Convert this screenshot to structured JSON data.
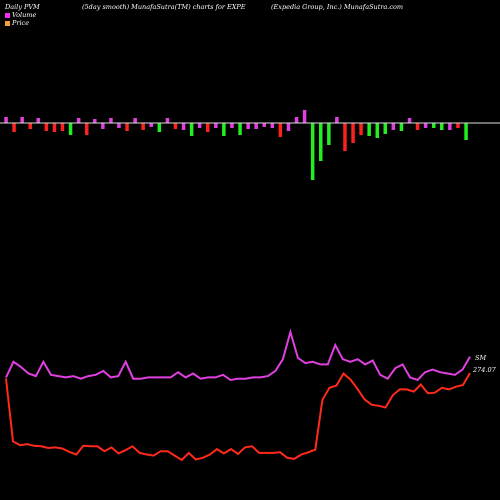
{
  "header": {
    "left": "Daily PVM",
    "middle": "(5day smooth) MunafaSutra(TM) charts for EXPE",
    "right": "(Expedia Group, Inc.) MunafaSutra.com"
  },
  "legend": [
    {
      "label": "Volume",
      "color": "#f02ff0"
    },
    {
      "label": "Price",
      "color": "#f5a03a"
    }
  ],
  "colors": {
    "background": "#000000",
    "baseline": "#dddddd",
    "bar_neutral": "#e040e0",
    "bar_down": "#ff2020",
    "bar_up": "#22ee22",
    "volume_line": "#e040e0",
    "price_line": "#ff2a1a"
  },
  "chart_data": [
    {
      "type": "bar",
      "description_series": "volume bars relative to baseline",
      "values": [
        {
          "v": 6,
          "c": "neutral"
        },
        {
          "v": -9,
          "c": "down"
        },
        {
          "v": 6,
          "c": "neutral"
        },
        {
          "v": -6,
          "c": "down"
        },
        {
          "v": 5,
          "c": "neutral"
        },
        {
          "v": -8,
          "c": "down"
        },
        {
          "v": -9,
          "c": "down"
        },
        {
          "v": -8,
          "c": "down"
        },
        {
          "v": -12,
          "c": "up"
        },
        {
          "v": 5,
          "c": "neutral"
        },
        {
          "v": -12,
          "c": "down"
        },
        {
          "v": 4,
          "c": "neutral"
        },
        {
          "v": -6,
          "c": "neutral"
        },
        {
          "v": 5,
          "c": "neutral"
        },
        {
          "v": -5,
          "c": "neutral"
        },
        {
          "v": -8,
          "c": "down"
        },
        {
          "v": 5,
          "c": "neutral"
        },
        {
          "v": -7,
          "c": "down"
        },
        {
          "v": -4,
          "c": "neutral"
        },
        {
          "v": -9,
          "c": "up"
        },
        {
          "v": 5,
          "c": "neutral"
        },
        {
          "v": -6,
          "c": "down"
        },
        {
          "v": -7,
          "c": "neutral"
        },
        {
          "v": -13,
          "c": "up"
        },
        {
          "v": -5,
          "c": "neutral"
        },
        {
          "v": -9,
          "c": "down"
        },
        {
          "v": -5,
          "c": "neutral"
        },
        {
          "v": -13,
          "c": "up"
        },
        {
          "v": -5,
          "c": "neutral"
        },
        {
          "v": -12,
          "c": "up"
        },
        {
          "v": -6,
          "c": "neutral"
        },
        {
          "v": -6,
          "c": "neutral"
        },
        {
          "v": -4,
          "c": "neutral"
        },
        {
          "v": -5,
          "c": "neutral"
        },
        {
          "v": -14,
          "c": "down"
        },
        {
          "v": -8,
          "c": "neutral"
        },
        {
          "v": 6,
          "c": "neutral"
        },
        {
          "v": 13,
          "c": "neutral"
        },
        {
          "v": -57,
          "c": "up"
        },
        {
          "v": -38,
          "c": "up"
        },
        {
          "v": -22,
          "c": "up"
        },
        {
          "v": 6,
          "c": "neutral"
        },
        {
          "v": -28,
          "c": "down"
        },
        {
          "v": -20,
          "c": "down"
        },
        {
          "v": -12,
          "c": "down"
        },
        {
          "v": -13,
          "c": "up"
        },
        {
          "v": -15,
          "c": "up"
        },
        {
          "v": -11,
          "c": "up"
        },
        {
          "v": -7,
          "c": "neutral"
        },
        {
          "v": -8,
          "c": "up"
        },
        {
          "v": 5,
          "c": "neutral"
        },
        {
          "v": -7,
          "c": "down"
        },
        {
          "v": -5,
          "c": "neutral"
        },
        {
          "v": -5,
          "c": "up"
        },
        {
          "v": -7,
          "c": "up"
        },
        {
          "v": -7,
          "c": "neutral"
        },
        {
          "v": -5,
          "c": "down"
        },
        {
          "v": -17,
          "c": "up"
        }
      ]
    },
    {
      "type": "line",
      "series": [
        {
          "role": "volume",
          "label": "SM",
          "values": [
            70,
            82,
            78,
            73,
            71,
            82,
            72,
            71,
            70,
            71,
            69,
            71,
            72,
            75,
            70,
            71,
            82,
            69,
            69,
            70,
            70,
            70,
            70,
            74,
            70,
            73,
            69,
            70,
            70,
            72,
            68,
            69,
            69,
            70,
            70,
            71,
            75,
            84,
            105,
            85,
            81,
            82,
            80,
            80,
            95,
            84,
            82,
            84,
            80,
            83,
            72,
            69,
            77,
            80,
            70,
            68,
            74,
            76,
            74,
            73,
            72,
            76,
            86
          ]
        },
        {
          "role": "price",
          "label": "274.07",
          "values": [
            275,
            160,
            153,
            155,
            152,
            151,
            148,
            149,
            147,
            141,
            136,
            152,
            151,
            151,
            142,
            149,
            138,
            144,
            151,
            139,
            136,
            134,
            142,
            142,
            134,
            126,
            139,
            127,
            130,
            136,
            146,
            138,
            146,
            137,
            149,
            151,
            139,
            139,
            139,
            140,
            130,
            128,
            136,
            140,
            145,
            236,
            258,
            262,
            284,
            273,
            256,
            237,
            227,
            225,
            222,
            244,
            255,
            255,
            251,
            264,
            248,
            249,
            258,
            255,
            260,
            263,
            285
          ]
        }
      ]
    }
  ]
}
